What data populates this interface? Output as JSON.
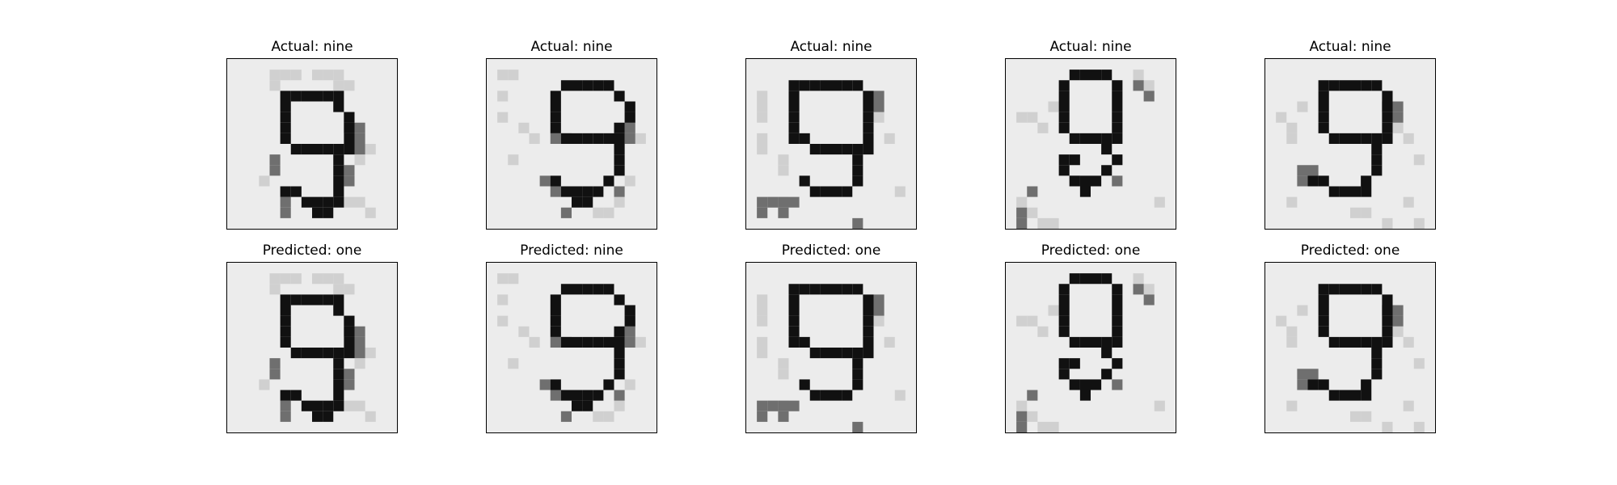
{
  "figure": {
    "background": "#ffffff",
    "grid": {
      "rows": 2,
      "cols": 5
    }
  },
  "panels": [
    {
      "row": 0,
      "col": 0,
      "title_prefix": "Actual:",
      "label": "nine",
      "title": "Actual: nine",
      "digit_variant": 0
    },
    {
      "row": 0,
      "col": 1,
      "title_prefix": "Actual:",
      "label": "nine",
      "title": "Actual: nine",
      "digit_variant": 1
    },
    {
      "row": 0,
      "col": 2,
      "title_prefix": "Actual:",
      "label": "nine",
      "title": "Actual: nine",
      "digit_variant": 2
    },
    {
      "row": 0,
      "col": 3,
      "title_prefix": "Actual:",
      "label": "nine",
      "title": "Actual: nine",
      "digit_variant": 3
    },
    {
      "row": 0,
      "col": 4,
      "title_prefix": "Actual:",
      "label": "nine",
      "title": "Actual: nine",
      "digit_variant": 4
    },
    {
      "row": 1,
      "col": 0,
      "title_prefix": "Predicted:",
      "label": "one",
      "title": "Predicted: one",
      "digit_variant": 0
    },
    {
      "row": 1,
      "col": 1,
      "title_prefix": "Predicted:",
      "label": "nine",
      "title": "Predicted: nine",
      "digit_variant": 1
    },
    {
      "row": 1,
      "col": 2,
      "title_prefix": "Predicted:",
      "label": "one",
      "title": "Predicted: one",
      "digit_variant": 2
    },
    {
      "row": 1,
      "col": 3,
      "title_prefix": "Predicted:",
      "label": "one",
      "title": "Predicted: one",
      "digit_variant": 3
    },
    {
      "row": 1,
      "col": 4,
      "title_prefix": "Predicted:",
      "label": "one",
      "title": "Predicted: one",
      "digit_variant": 4
    }
  ],
  "colors": {
    "frame_border": "#000000",
    "image_background": "#ececec",
    "ink_dark": "#111111",
    "ink_mid": "#6f6f6f",
    "ink_light": "#d0d0d0"
  }
}
